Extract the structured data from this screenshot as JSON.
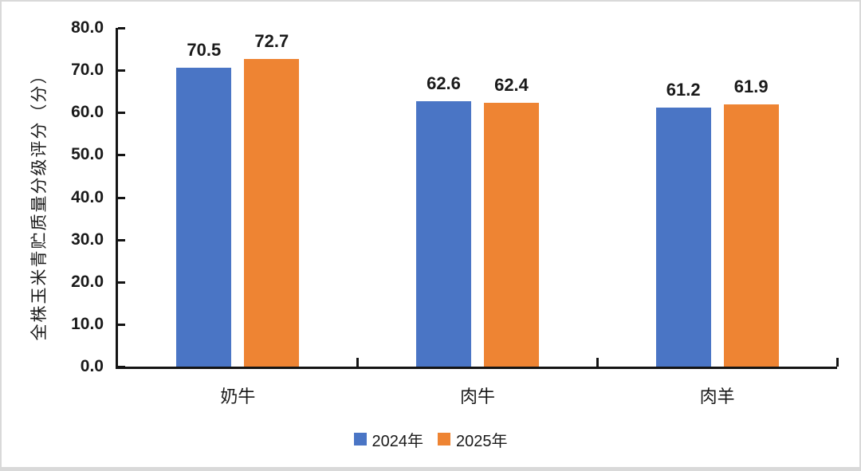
{
  "chart_data": {
    "type": "bar",
    "title": "",
    "categories": [
      "奶牛",
      "肉牛",
      "肉羊"
    ],
    "series": [
      {
        "name": "2024年",
        "color": "#4A75C5",
        "values": [
          70.5,
          62.6,
          61.2
        ]
      },
      {
        "name": "2025年",
        "color": "#EE8433",
        "values": [
          72.7,
          62.4,
          61.9
        ]
      }
    ],
    "ylabel": "全株玉米青贮质量分级评分（分）",
    "xlabel": "",
    "ylim": [
      0,
      80
    ],
    "ytick_step": 10,
    "ytick_decimals": 1,
    "grid": false,
    "legend_position": "bottom",
    "data_labels": true
  },
  "style": {
    "axis_color": "#141414",
    "text_color": "#1a1a1a",
    "frame_border_color": "#d9d9d9",
    "background": "#ffffff"
  }
}
